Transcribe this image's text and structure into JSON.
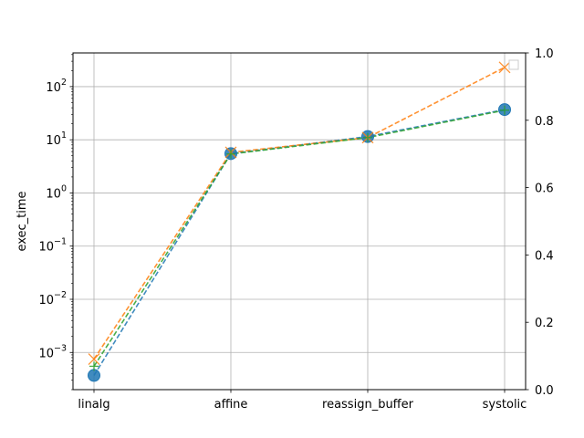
{
  "chart_data": {
    "type": "line",
    "title": "",
    "xlabel": "",
    "ylabel": "exec_time",
    "y_scale": "log",
    "ylim": [
      0.0002,
      430
    ],
    "y_ticks": [
      {
        "value": 0.001,
        "base": "10",
        "exp": "−3"
      },
      {
        "value": 0.01,
        "base": "10",
        "exp": "−2"
      },
      {
        "value": 0.1,
        "base": "10",
        "exp": "−1"
      },
      {
        "value": 1,
        "base": "10",
        "exp": "0"
      },
      {
        "value": 10,
        "base": "10",
        "exp": "1"
      },
      {
        "value": 100,
        "base": "10",
        "exp": "2"
      }
    ],
    "y2_ticks": [
      "0.0",
      "0.2",
      "0.4",
      "0.6",
      "0.8",
      "1.0"
    ],
    "y2lim": [
      0,
      1
    ],
    "categories": [
      "linalg",
      "affine",
      "reassign_buffer",
      "systolic"
    ],
    "grid": true,
    "legend": "top-right, empty",
    "series": [
      {
        "color": "#1f77b4",
        "marker": "circle",
        "values": [
          0.00037,
          5.5,
          11.5,
          37
        ]
      },
      {
        "color": "#ff7f0e",
        "marker": "x",
        "values": [
          0.00075,
          5.8,
          11.0,
          230
        ]
      },
      {
        "color": "#2ca02c",
        "marker": "plus",
        "values": [
          0.00055,
          5.4,
          11.0,
          36
        ]
      }
    ]
  }
}
